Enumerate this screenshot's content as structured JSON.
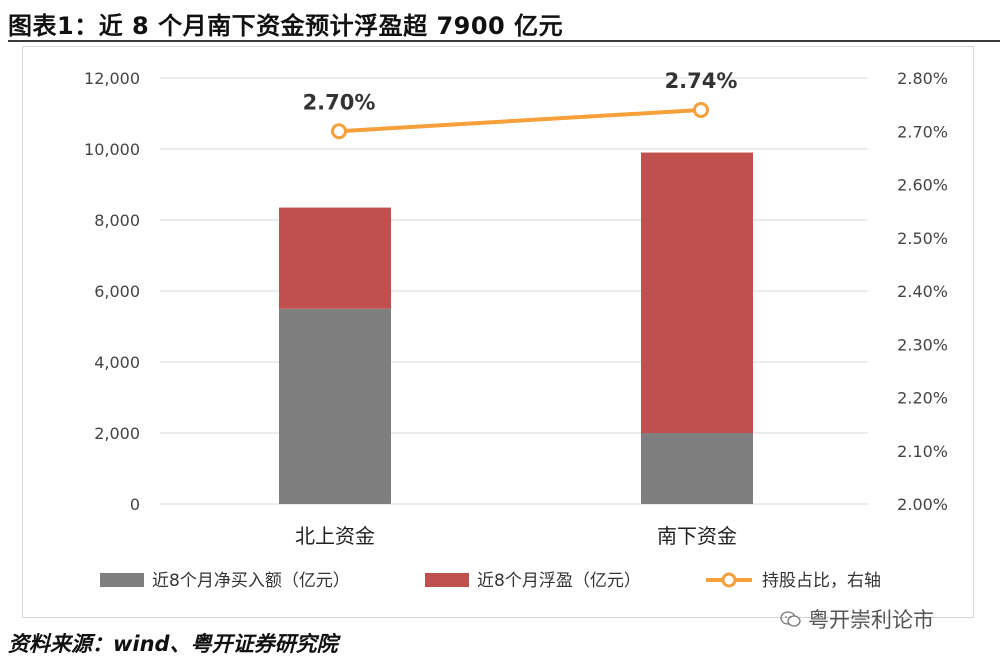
{
  "title": "图表1：近 8 个月南下资金预计浮盈超 7900 亿元",
  "source": "资料来源：wind、粤开证券研究院",
  "watermark": "粤开崇利论市",
  "colors": {
    "net_buy": "#7f7f7f",
    "profit": "#c0504d",
    "ratio": "#f5a03a"
  },
  "chart_data": {
    "type": "bar",
    "stacked": true,
    "categories": [
      "北上资金",
      "南下资金"
    ],
    "series": [
      {
        "name": "近8个月净买入额（亿元）",
        "values": [
          5500,
          2000
        ]
      },
      {
        "name": "近8个月浮盈（亿元）",
        "values": [
          2850,
          7900
        ]
      }
    ],
    "line_series": {
      "name": "持股占比，右轴",
      "values": [
        2.7,
        2.74
      ],
      "labels": [
        "2.70%",
        "2.74%"
      ]
    },
    "ylim": [
      0,
      12000
    ],
    "y_ticks": [
      "0",
      "2,000",
      "4,000",
      "6,000",
      "8,000",
      "10,000",
      "12,000"
    ],
    "y2lim": [
      2.0,
      2.8
    ],
    "y2_ticks": [
      "2.00%",
      "2.10%",
      "2.20%",
      "2.30%",
      "2.40%",
      "2.50%",
      "2.60%",
      "2.70%",
      "2.80%"
    ],
    "grid": true,
    "legend_position": "bottom"
  }
}
